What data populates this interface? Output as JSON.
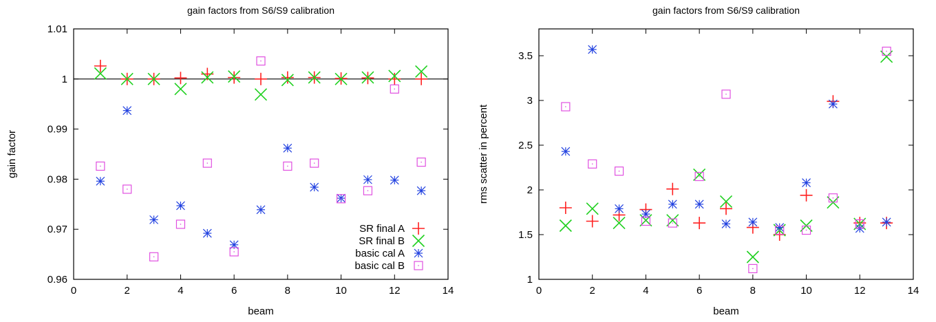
{
  "chart_data": [
    {
      "type": "scatter",
      "title": "gain factors from S6/S9 calibration",
      "xlabel": "beam",
      "ylabel": "gain factor",
      "xlim": [
        0,
        14
      ],
      "ylim": [
        0.96,
        1.01
      ],
      "xticks": [
        0,
        2,
        4,
        6,
        8,
        10,
        12,
        14
      ],
      "xtick_labels": [
        "0",
        "2",
        "4",
        "6",
        "8",
        "10",
        "12",
        "14"
      ],
      "yticks": [
        0.96,
        0.97,
        0.98,
        0.99,
        1.0,
        1.01
      ],
      "ytick_labels": [
        "0.96",
        "0.97",
        "0.98",
        "0.99",
        "1",
        "1.01"
      ],
      "reference_line": 1.0,
      "grid": false,
      "legend": "bottom-right",
      "series": [
        {
          "name": "SR final A",
          "marker": "plus",
          "color": "#ff2020",
          "x": [
            1,
            2,
            3,
            4,
            5,
            6,
            7,
            8,
            9,
            10,
            11,
            12,
            13
          ],
          "y": [
            1.0026,
            1.0,
            1.0,
            1.0002,
            1.001,
            1.0003,
            1.0,
            1.0003,
            1.0003,
            1.0001,
            1.0002,
            1.0,
            1.0
          ]
        },
        {
          "name": "SR final B",
          "marker": "cross",
          "color": "#20d020",
          "x": [
            1,
            2,
            3,
            4,
            5,
            6,
            7,
            8,
            9,
            10,
            11,
            12,
            13
          ],
          "y": [
            1.0011,
            1.0,
            1.0,
            0.998,
            1.0003,
            1.0005,
            0.9969,
            0.9998,
            1.0003,
            1.0,
            1.0003,
            1.0006,
            1.0015
          ]
        },
        {
          "name": "basic cal A",
          "marker": "star",
          "color": "#2040e0",
          "x": [
            1,
            2,
            3,
            4,
            5,
            6,
            7,
            8,
            9,
            10,
            11,
            12,
            13
          ],
          "y": [
            0.9796,
            0.9937,
            0.9719,
            0.9747,
            0.9692,
            0.9669,
            0.9739,
            0.9862,
            0.9784,
            0.9762,
            0.9799,
            0.9798,
            0.9777
          ]
        },
        {
          "name": "basic cal B",
          "marker": "box",
          "color": "#e050e0",
          "x": [
            1,
            2,
            3,
            4,
            5,
            6,
            7,
            8,
            9,
            10,
            11,
            12,
            13
          ],
          "y": [
            0.9826,
            0.978,
            0.9645,
            0.971,
            0.9832,
            0.9655,
            1.0036,
            0.9826,
            0.9832,
            0.9761,
            0.9777,
            0.998,
            0.9834
          ]
        }
      ]
    },
    {
      "type": "scatter",
      "title": "gain factors from S6/S9 calibration",
      "xlabel": "beam",
      "ylabel": "rms scatter in percent",
      "xlim": [
        0,
        14
      ],
      "ylim": [
        1,
        3.8
      ],
      "xticks": [
        0,
        2,
        4,
        6,
        8,
        10,
        12,
        14
      ],
      "xtick_labels": [
        "0",
        "2",
        "4",
        "6",
        "8",
        "10",
        "12",
        "14"
      ],
      "yticks": [
        1,
        1.5,
        2,
        2.5,
        3,
        3.5
      ],
      "ytick_labels": [
        "1",
        "1.5",
        "2",
        "2.5",
        "3",
        "3.5"
      ],
      "grid": false,
      "series": [
        {
          "marker": "plus",
          "color": "#ff2020",
          "x": [
            1,
            2,
            3,
            4,
            5,
            6,
            7,
            8,
            9,
            10,
            11,
            12,
            13
          ],
          "y": [
            1.8,
            1.65,
            1.72,
            1.78,
            2.01,
            1.63,
            1.79,
            1.58,
            1.5,
            1.94,
            2.99,
            1.63,
            1.63
          ]
        },
        {
          "marker": "cross",
          "color": "#20d020",
          "x": [
            1,
            2,
            3,
            4,
            5,
            6,
            7,
            8,
            9,
            10,
            11,
            12,
            13
          ],
          "y": [
            1.6,
            1.79,
            1.63,
            1.66,
            1.66,
            2.17,
            1.87,
            1.25,
            1.55,
            1.6,
            1.86,
            1.62,
            3.49
          ]
        },
        {
          "marker": "star",
          "color": "#2040e0",
          "x": [
            1,
            2,
            3,
            4,
            5,
            6,
            7,
            8,
            9,
            10,
            11,
            12,
            13
          ],
          "y": [
            2.43,
            3.57,
            1.79,
            1.73,
            1.84,
            1.84,
            1.62,
            1.64,
            1.58,
            2.08,
            2.96,
            1.57,
            1.64
          ]
        },
        {
          "marker": "box",
          "color": "#e050e0",
          "x": [
            1,
            2,
            3,
            4,
            5,
            6,
            7,
            8,
            9,
            10,
            11,
            12,
            13
          ],
          "y": [
            2.93,
            2.29,
            2.21,
            1.65,
            1.63,
            2.15,
            3.07,
            1.12,
            1.55,
            1.55,
            1.91,
            1.62,
            3.55
          ]
        }
      ]
    }
  ]
}
